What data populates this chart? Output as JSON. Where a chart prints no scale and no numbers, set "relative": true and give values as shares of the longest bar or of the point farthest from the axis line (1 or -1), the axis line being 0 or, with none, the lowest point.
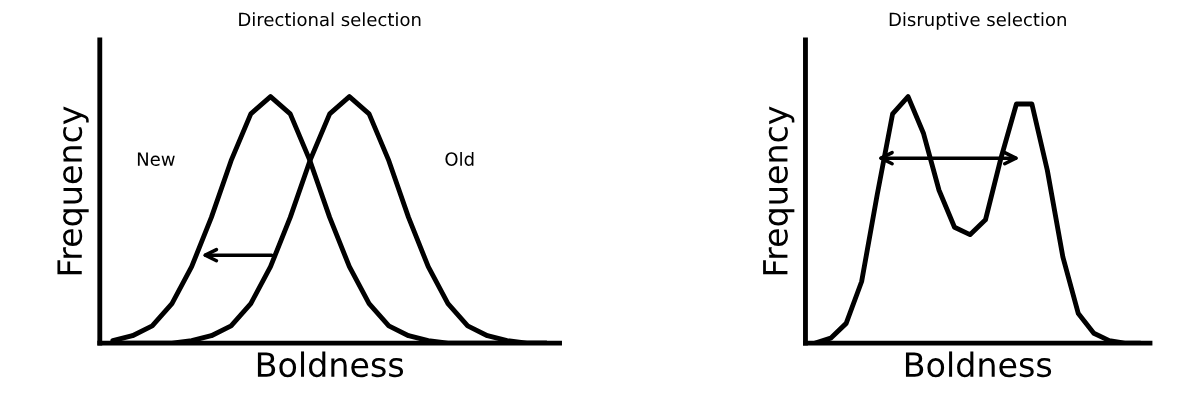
{
  "chart_data": [
    {
      "type": "line",
      "title": "Directional selection",
      "xlabel": "Boldness",
      "ylabel": "Frequency",
      "relative": true,
      "tick_labels": false,
      "grid": false,
      "legend": false,
      "marker": "none",
      "line_style": "solid",
      "categories": [
        null,
        null,
        null,
        null,
        null,
        null,
        null,
        null,
        null,
        null,
        null,
        null,
        null,
        null,
        null,
        null,
        null,
        null,
        null,
        null,
        null,
        null,
        null
      ],
      "series": [
        {
          "name": "New",
          "color": "#000000",
          "values": [
            0.01,
            0.03,
            0.07,
            0.16,
            0.31,
            0.51,
            0.74,
            0.93,
            1,
            0.93,
            0.74,
            0.51,
            0.31,
            0.16,
            0.07,
            0.03,
            0.01,
            0,
            0,
            0,
            0,
            0,
            0
          ]
        },
        {
          "name": "Old",
          "color": "#000000",
          "values": [
            0,
            0,
            0,
            0,
            0.01,
            0.03,
            0.07,
            0.16,
            0.31,
            0.51,
            0.74,
            0.93,
            1,
            0.93,
            0.74,
            0.51,
            0.31,
            0.16,
            0.07,
            0.03,
            0.01,
            0,
            0
          ]
        }
      ]
    },
    {
      "type": "line",
      "title": "Disruptive selection",
      "xlabel": "Boldness",
      "ylabel": "Frequency",
      "relative": true,
      "tick_labels": false,
      "grid": false,
      "legend": false,
      "marker": "none",
      "line_style": "solid",
      "categories": [
        null,
        null,
        null,
        null,
        null,
        null,
        null,
        null,
        null,
        null,
        null,
        null,
        null,
        null,
        null,
        null,
        null,
        null,
        null,
        null,
        null,
        null
      ],
      "series": [
        {
          "color": "#000000",
          "values": [
            0,
            0.02,
            0.08,
            0.25,
            0.6,
            0.93,
            1,
            0.85,
            0.62,
            0.47,
            0.44,
            0.5,
            0.75,
            0.97,
            0.97,
            0.7,
            0.35,
            0.12,
            0.04,
            0.01,
            0,
            0
          ]
        }
      ]
    }
  ]
}
